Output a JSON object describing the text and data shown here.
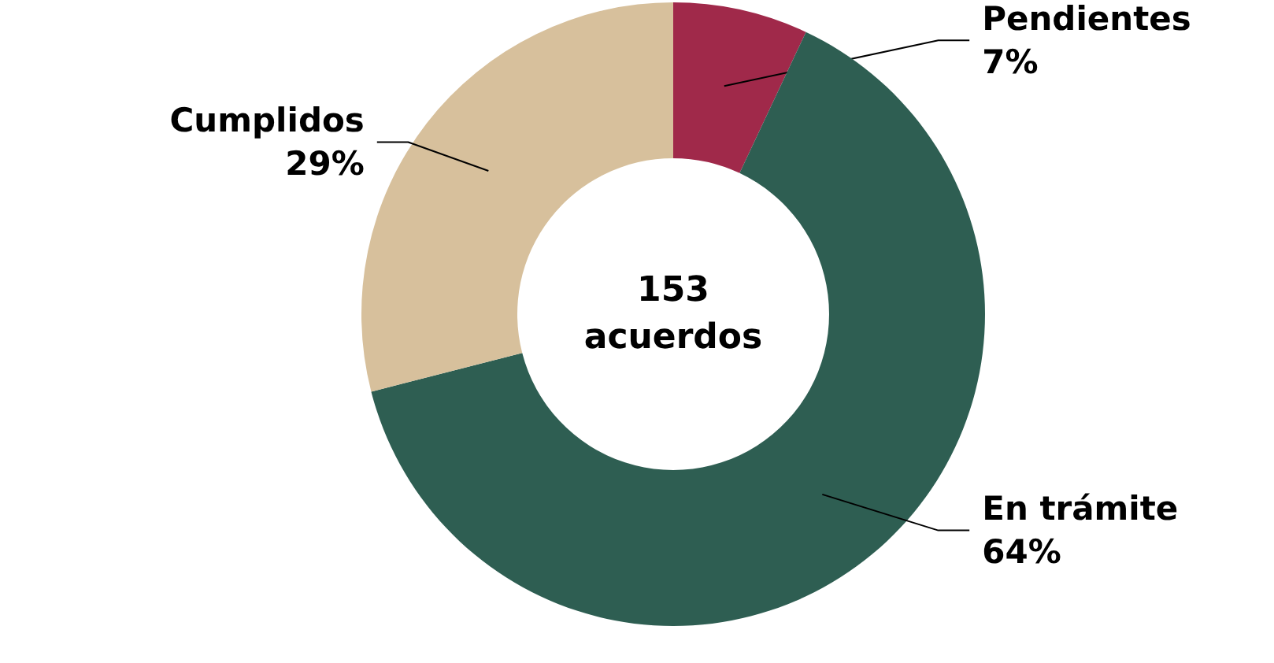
{
  "chart_data": {
    "type": "donut",
    "categories": [
      "Pendientes",
      "En trámite",
      "Cumplidos"
    ],
    "values": [
      7,
      64,
      29
    ],
    "colors": [
      "#a0294a",
      "#2e5e52",
      "#d7c09c"
    ],
    "value_labels": [
      "7%",
      "64%",
      "29%"
    ],
    "annotations": [
      "153\nacuerdos"
    ]
  }
}
